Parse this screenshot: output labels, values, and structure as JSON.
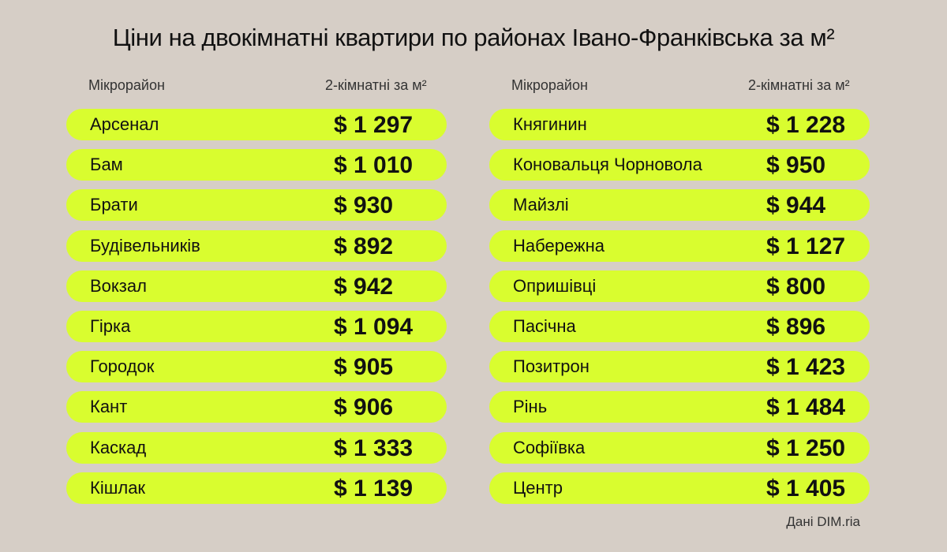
{
  "title": "Ціни на двокімнатні квартири по районах Івано-Франківська за м²",
  "source": "Дані DIM.ria",
  "colors": {
    "background": "#d6cec6",
    "row_fill": "#d9fd2f",
    "text": "#111111"
  },
  "chart_data": {
    "type": "table",
    "title": "Ціни на двокімнатні квартири по районах Івано-Франківська за м²",
    "columns": [
      "Мікрорайон",
      "2-кімнатні за м²"
    ],
    "tables": [
      {
        "header": {
          "name": "Мікрорайон",
          "price": "2-кімнатні за м²"
        },
        "rows": [
          {
            "name": "Арсенал",
            "price": "$ 1 297"
          },
          {
            "name": "Бам",
            "price": "$ 1 010"
          },
          {
            "name": "Брати",
            "price": "$ 930"
          },
          {
            "name": "Будівельників",
            "price": "$ 892"
          },
          {
            "name": "Вокзал",
            "price": "$ 942"
          },
          {
            "name": "Гірка",
            "price": "$ 1 094"
          },
          {
            "name": "Городок",
            "price": "$ 905"
          },
          {
            "name": "Кант",
            "price": "$ 906"
          },
          {
            "name": "Каскад",
            "price": "$ 1 333"
          },
          {
            "name": "Кішлак",
            "price": "$ 1 139"
          }
        ]
      },
      {
        "header": {
          "name": "Мікрорайон",
          "price": "2-кімнатні за м²"
        },
        "rows": [
          {
            "name": "Княгинин",
            "price": "$ 1 228"
          },
          {
            "name": "Коновальця Чорновола",
            "price": "$ 950"
          },
          {
            "name": "Майзлі",
            "price": "$ 944"
          },
          {
            "name": "Набережна",
            "price": "$ 1 127"
          },
          {
            "name": "Опришівці",
            "price": "$ 800"
          },
          {
            "name": "Пасічна",
            "price": "$ 896"
          },
          {
            "name": "Позитрон",
            "price": "$ 1 423"
          },
          {
            "name": "Рінь",
            "price": "$ 1 484"
          },
          {
            "name": "Софіївка",
            "price": "$ 1 250"
          },
          {
            "name": "Центр",
            "price": "$ 1 405"
          }
        ]
      }
    ]
  }
}
